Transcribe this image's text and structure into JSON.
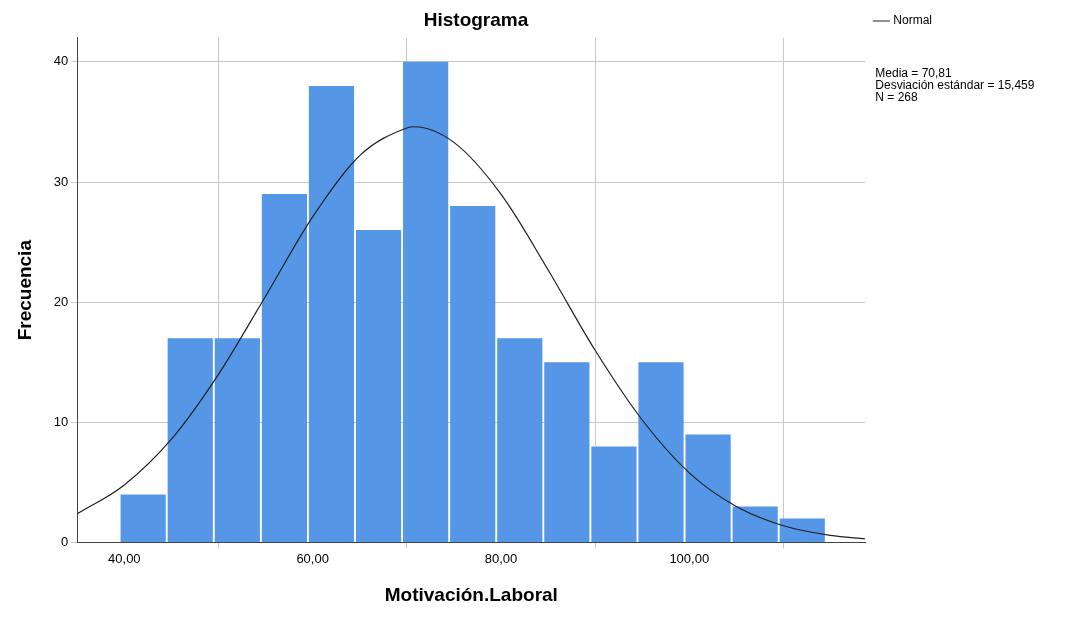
{
  "chart_data": {
    "type": "histogram",
    "title": "Histograma",
    "xlabel": "Motivación.Laboral",
    "ylabel": "Frecuencia",
    "bins": [
      39.5,
      44.5,
      49.5,
      54.5,
      59.5,
      64.5,
      69.5,
      74.5,
      79.5,
      84.5,
      89.5,
      94.5,
      99.5,
      104.5,
      109.5,
      114.5
    ],
    "series": [
      {
        "color": "#5596e6",
        "values": [
          4,
          17,
          17,
          29,
          38,
          26,
          40,
          28,
          17,
          15,
          8,
          15,
          9,
          3,
          2
        ]
      },
      {
        "type": "line",
        "name": "Normal",
        "color": "#222222",
        "x": [
          35,
          40,
          45,
          50,
          55,
          60,
          65,
          70,
          70.81,
          75,
          80,
          85,
          90,
          95,
          100,
          105,
          110,
          115,
          118.7
        ],
        "values": [
          2.4,
          4.8,
          8.6,
          14,
          20.5,
          27.1,
          32.2,
          34.5,
          34.6,
          33.3,
          29,
          22.7,
          16,
          10.2,
          5.8,
          3,
          1.4,
          0.6,
          0.3
        ]
      }
    ],
    "xlim": [
      35,
      118.7
    ],
    "xticks": [
      {
        "value": 40,
        "label": "40,00"
      },
      {
        "value": 60,
        "label": "60,00"
      },
      {
        "value": 80,
        "label": "80,00"
      },
      {
        "value": 100,
        "label": "100,00"
      }
    ],
    "ylim": [
      0,
      42
    ],
    "yticks": [
      0,
      10,
      20,
      30,
      40
    ],
    "grid": true,
    "legend": "top right",
    "marker": "none",
    "annotations": [
      "Media = 70,81",
      "Desviación estándar = 15,459",
      "N = 268"
    ]
  }
}
